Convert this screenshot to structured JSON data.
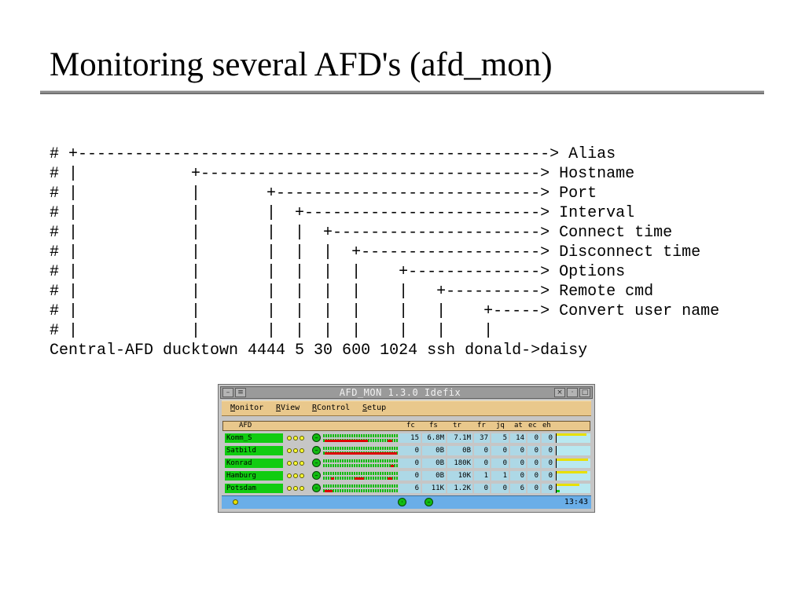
{
  "slide": {
    "title": "Monitoring several AFD's (afd_mon)"
  },
  "config_lines": [
    "# +--------------------------------------------------> Alias",
    "# |            +------------------------------------> Hostname",
    "# |            |       +----------------------------> Port",
    "# |            |       |  +-------------------------> Interval",
    "# |            |       |  |  +----------------------> Connect time",
    "# |            |       |  |  |  +-------------------> Disconnect time",
    "# |            |       |  |  |  |    +--------------> Options",
    "# |            |       |  |  |  |    |   +----------> Remote cmd",
    "# |            |       |  |  |  |    |   |    +-----> Convert user name",
    "# |            |       |  |  |  |    |   |    |",
    "Central-AFD ducktown 4444 5 30 600 1024 ssh donald->daisy"
  ],
  "window": {
    "title": "AFD_MON 1.3.0 Idefix",
    "menu": [
      {
        "accel": "M",
        "rest": "onitor"
      },
      {
        "accel": "R",
        "rest": "View"
      },
      {
        "accel": "R",
        "rest": "Control"
      },
      {
        "accel": "S",
        "rest": "etup"
      }
    ],
    "columns": {
      "afd": "AFD",
      "fc": "fc",
      "fs": "fs",
      "tr": "tr",
      "fr": "fr",
      "jq": "jq",
      "at": "at",
      "ec": "ec",
      "eh": "eh"
    },
    "rows": [
      {
        "alias": "Komm_S",
        "fc": "15",
        "fs": "6.8M",
        "tr": "7.1M",
        "fr": "37",
        "jq": "5",
        "at": "14",
        "ec": "0",
        "eh": "0",
        "usage": 0.9
      },
      {
        "alias": "Satbild",
        "fc": "0",
        "fs": "0B",
        "tr": "0B",
        "fr": "0",
        "jq": "0",
        "at": "0",
        "ec": "0",
        "eh": "0",
        "usage": 0
      },
      {
        "alias": "Konrad",
        "fc": "0",
        "fs": "0B",
        "tr": "180K",
        "fr": "0",
        "jq": "0",
        "at": "0",
        "ec": "0",
        "eh": "0",
        "usage": 0.95
      },
      {
        "alias": "Hamburg",
        "fc": "0",
        "fs": "0B",
        "tr": "10K",
        "fr": "1",
        "jq": "1",
        "at": "0",
        "ec": "0",
        "eh": "0",
        "usage": 0.92
      },
      {
        "alias": "Potsdam",
        "fc": "6",
        "fs": "11K",
        "tr": "1.2K",
        "fr": "0",
        "jq": "0",
        "at": "6",
        "ec": "0",
        "eh": "0",
        "usage": 0.7
      }
    ],
    "status_time": "13:43"
  },
  "colors": {
    "alias_active": "#11cc11",
    "value_cell": "#add8e6",
    "menubar": "#e9c88c",
    "statusbar": "#6aaee8",
    "usage_bar": "#e8e000"
  }
}
